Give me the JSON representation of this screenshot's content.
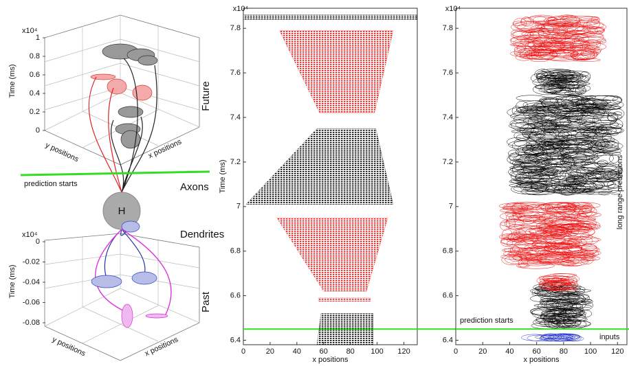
{
  "left": {
    "future_label": "Future",
    "past_label": "Past",
    "axons_label": "Axons",
    "dendrites_label": "Dendrites",
    "node_label": "H",
    "prediction_label": "prediction starts",
    "top_axes": {
      "exponent_label": "x10⁴",
      "zlabel": "Time (ms)",
      "xlabel": "x positions",
      "ylabel": "y positions",
      "zlim": [
        0,
        1
      ],
      "zticks": [
        0,
        0.2,
        0.4,
        0.6,
        0.8,
        1
      ]
    },
    "bottom_axes": {
      "exponent_label": "x10⁴",
      "zlabel": "Time (ms)",
      "xlabel": "x positions",
      "ylabel": "y positions",
      "zlim": [
        -0.08,
        0
      ],
      "zticks": [
        0,
        -0.02,
        -0.04,
        -0.06,
        -0.08
      ]
    }
  },
  "chart_data": [
    {
      "type": "raster",
      "exponent_label": "x10⁴",
      "ylabel": "Time (ms)",
      "xlabel": "x positions",
      "xlim": [
        0,
        130
      ],
      "xticks": [
        0,
        20,
        40,
        60,
        80,
        100,
        120
      ],
      "ylim": [
        6.38,
        7.89
      ],
      "yticks": [
        6.4,
        6.6,
        6.8,
        7,
        7.2,
        7.4,
        7.6,
        7.8
      ],
      "prediction_start": 6.45,
      "prediction_color": "#33dd22",
      "regions": [
        {
          "color": "#000000",
          "t": [
            6.38,
            6.52
          ],
          "x_bottom": [
            55,
            97
          ],
          "x_top": [
            58,
            97
          ]
        },
        {
          "color": "#ee1111",
          "t": [
            6.575,
            6.59
          ],
          "x_bottom": [
            56,
            95
          ],
          "x_top": [
            56,
            95
          ]
        },
        {
          "color": "#ee1111",
          "t": [
            6.62,
            6.95
          ],
          "x_bottom": [
            60,
            92
          ],
          "x_top": [
            25,
            108
          ]
        },
        {
          "color": "#000000",
          "t": [
            7.01,
            7.35
          ],
          "x_bottom": [
            2,
            112
          ],
          "x_top": [
            55,
            99
          ]
        },
        {
          "color": "#ee1111",
          "t": [
            7.42,
            7.79
          ],
          "x_bottom": [
            57,
            98
          ],
          "x_top": [
            27,
            112
          ]
        },
        {
          "color": "#000000",
          "t": [
            7.84,
            7.86
          ],
          "x_bottom": [
            0,
            130
          ],
          "x_top": [
            0,
            130
          ]
        }
      ]
    },
    {
      "type": "ellipses",
      "exponent_label": "x10⁴",
      "xlabel": "x positions",
      "xlim": [
        0,
        127
      ],
      "xticks": [
        0,
        20,
        40,
        60,
        80,
        100,
        120
      ],
      "ylim": [
        6.38,
        7.89
      ],
      "yticks": [
        6.4,
        6.6,
        6.8,
        7,
        7.2,
        7.4,
        7.6,
        7.8
      ],
      "prediction_start": 6.45,
      "prediction_color": "#33dd22",
      "annotations": {
        "prediction": "prediction starts",
        "inputs": "inputs",
        "side": "long range predictions"
      },
      "regions": [
        {
          "color": "#2233cc",
          "t": [
            6.395,
            6.43
          ],
          "x": [
            48,
            98
          ]
        },
        {
          "color": "#000000",
          "t": [
            6.45,
            6.66
          ],
          "x": [
            55,
            102
          ]
        },
        {
          "color": "#ee1111",
          "t": [
            6.62,
            6.7
          ],
          "x": [
            60,
            92
          ]
        },
        {
          "color": "#ee1111",
          "t": [
            6.72,
            7.02
          ],
          "x": [
            32,
            108
          ]
        },
        {
          "color": "#000000",
          "t": [
            7.05,
            7.5
          ],
          "x": [
            38,
            125
          ]
        },
        {
          "color": "#000000",
          "t": [
            7.5,
            7.62
          ],
          "x": [
            55,
            100
          ]
        },
        {
          "color": "#ee1111",
          "t": [
            7.65,
            7.86
          ],
          "x": [
            40,
            112
          ]
        }
      ]
    }
  ]
}
